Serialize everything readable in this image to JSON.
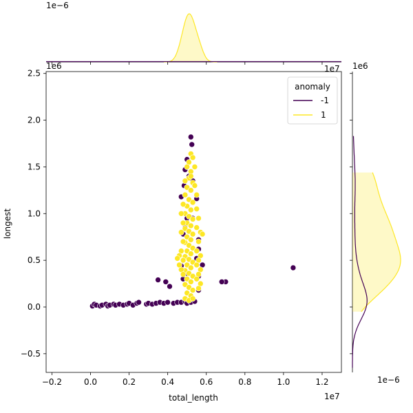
{
  "chart_data": {
    "type": "scatter",
    "xlabel": "total_length",
    "ylabel": "longest",
    "x_offset_label": "1e7",
    "y_offset_label": "1e6",
    "xlim": [
      -0.23,
      1.3
    ],
    "ylim": [
      -0.7,
      2.52
    ],
    "x_ticks": [
      -0.2,
      0.0,
      0.2,
      0.4,
      0.6,
      0.8,
      1.0,
      1.2
    ],
    "y_ticks": [
      -0.5,
      0.0,
      0.5,
      1.0,
      1.5,
      2.0,
      2.5
    ],
    "x_tick_labels": [
      "−0.2",
      "0.0",
      "0.2",
      "0.4",
      "0.6",
      "0.8",
      "1.0",
      "1.2"
    ],
    "y_tick_labels": [
      "−0.5",
      "0.0",
      "0.5",
      "1.0",
      "1.5",
      "2.0",
      "2.5"
    ],
    "legend": {
      "title": "anomaly",
      "placement": "top-right",
      "entries": [
        {
          "label": "-1",
          "color": "#440154"
        },
        {
          "label": "1",
          "color": "#fde725"
        }
      ]
    },
    "marginal_top": {
      "offset_label": "1e−6",
      "type": "kde"
    },
    "marginal_right": {
      "offset_label_top": "1e6",
      "offset_label_bottom": "1e−6",
      "type": "kde"
    },
    "series": [
      {
        "name": "-1",
        "color": "#440154",
        "points": [
          [
            0.01,
            0.01
          ],
          [
            0.02,
            0.03
          ],
          [
            0.03,
            0.02
          ],
          [
            0.05,
            0.01
          ],
          [
            0.06,
            0.02
          ],
          [
            0.08,
            0.03
          ],
          [
            0.09,
            0.01
          ],
          [
            0.1,
            0.02
          ],
          [
            0.12,
            0.03
          ],
          [
            0.13,
            0.02
          ],
          [
            0.15,
            0.03
          ],
          [
            0.17,
            0.02
          ],
          [
            0.19,
            0.03
          ],
          [
            0.2,
            0.04
          ],
          [
            0.22,
            0.02
          ],
          [
            0.24,
            0.04
          ],
          [
            0.25,
            0.05
          ],
          [
            0.29,
            0.03
          ],
          [
            0.3,
            0.04
          ],
          [
            0.32,
            0.03
          ],
          [
            0.34,
            0.04
          ],
          [
            0.36,
            0.05
          ],
          [
            0.38,
            0.04
          ],
          [
            0.4,
            0.05
          ],
          [
            0.43,
            0.04
          ],
          [
            0.45,
            0.05
          ],
          [
            0.47,
            0.05
          ],
          [
            0.49,
            0.06
          ],
          [
            0.5,
            0.04
          ],
          [
            0.52,
            0.05
          ],
          [
            0.54,
            0.06
          ],
          [
            0.35,
            0.29
          ],
          [
            0.39,
            0.27
          ],
          [
            0.41,
            0.22
          ],
          [
            0.48,
            0.3
          ],
          [
            0.5,
            0.36
          ],
          [
            0.56,
            0.33
          ],
          [
            0.58,
            0.45
          ],
          [
            0.52,
            1.82
          ],
          [
            0.525,
            1.74
          ],
          [
            0.5,
            1.58
          ],
          [
            0.49,
            1.47
          ],
          [
            0.53,
            1.35
          ],
          [
            0.54,
            1.3
          ],
          [
            0.51,
            1.4
          ],
          [
            0.485,
            1.3
          ],
          [
            0.47,
            1.18
          ],
          [
            0.55,
            1.16
          ],
          [
            0.5,
            0.95
          ],
          [
            0.49,
            0.85
          ],
          [
            0.48,
            0.78
          ],
          [
            0.56,
            0.72
          ],
          [
            0.53,
            0.95
          ],
          [
            0.56,
            0.62
          ],
          [
            0.47,
            0.44
          ],
          [
            0.55,
            0.52
          ],
          [
            0.56,
            0.18
          ],
          [
            0.7,
            0.27
          ],
          [
            0.68,
            0.27
          ],
          [
            1.05,
            0.42
          ]
        ]
      },
      {
        "name": "1",
        "color": "#fde725",
        "points": [
          [
            0.52,
            1.64
          ],
          [
            0.51,
            1.55
          ],
          [
            0.53,
            1.6
          ],
          [
            0.5,
            1.5
          ],
          [
            0.52,
            1.45
          ],
          [
            0.51,
            1.38
          ],
          [
            0.53,
            1.33
          ],
          [
            0.5,
            1.28
          ],
          [
            0.52,
            1.25
          ],
          [
            0.49,
            1.2
          ],
          [
            0.51,
            1.15
          ],
          [
            0.53,
            1.12
          ],
          [
            0.5,
            1.08
          ],
          [
            0.52,
            1.04
          ],
          [
            0.49,
            1.0
          ],
          [
            0.51,
            0.97
          ],
          [
            0.53,
            0.94
          ],
          [
            0.5,
            0.9
          ],
          [
            0.52,
            0.87
          ],
          [
            0.49,
            0.84
          ],
          [
            0.51,
            0.81
          ],
          [
            0.53,
            0.78
          ],
          [
            0.5,
            0.75
          ],
          [
            0.52,
            0.72
          ],
          [
            0.49,
            0.69
          ],
          [
            0.51,
            0.66
          ],
          [
            0.53,
            0.63
          ],
          [
            0.5,
            0.6
          ],
          [
            0.52,
            0.57
          ],
          [
            0.49,
            0.54
          ],
          [
            0.51,
            0.51
          ],
          [
            0.53,
            0.48
          ],
          [
            0.5,
            0.45
          ],
          [
            0.52,
            0.42
          ],
          [
            0.49,
            0.39
          ],
          [
            0.51,
            0.36
          ],
          [
            0.53,
            0.33
          ],
          [
            0.5,
            0.3
          ],
          [
            0.52,
            0.27
          ],
          [
            0.49,
            0.24
          ],
          [
            0.51,
            0.21
          ],
          [
            0.53,
            0.18
          ],
          [
            0.5,
            0.15
          ],
          [
            0.52,
            0.12
          ],
          [
            0.49,
            0.09
          ],
          [
            0.51,
            0.07
          ],
          [
            0.53,
            0.09
          ],
          [
            0.55,
            1.05
          ],
          [
            0.56,
            0.95
          ],
          [
            0.55,
            0.85
          ],
          [
            0.57,
            0.8
          ],
          [
            0.56,
            0.7
          ],
          [
            0.55,
            0.6
          ],
          [
            0.57,
            0.55
          ],
          [
            0.56,
            0.5
          ],
          [
            0.55,
            0.45
          ],
          [
            0.57,
            0.4
          ],
          [
            0.56,
            0.35
          ],
          [
            0.55,
            0.3
          ],
          [
            0.57,
            0.25
          ],
          [
            0.56,
            0.2
          ],
          [
            0.58,
            0.78
          ],
          [
            0.55,
            1.2
          ],
          [
            0.47,
            0.8
          ],
          [
            0.48,
            0.7
          ],
          [
            0.47,
            0.6
          ],
          [
            0.48,
            0.5
          ],
          [
            0.46,
            0.55
          ],
          [
            0.45,
            0.52
          ],
          [
            0.47,
            0.4
          ],
          [
            0.48,
            0.35
          ],
          [
            0.46,
            0.45
          ],
          [
            0.48,
            0.9
          ],
          [
            0.47,
            1.0
          ],
          [
            0.48,
            1.1
          ],
          [
            0.49,
            1.35
          ],
          [
            0.54,
            1.3
          ],
          [
            0.54,
            1.5
          ],
          [
            0.52,
            1.4
          ]
        ]
      }
    ]
  }
}
